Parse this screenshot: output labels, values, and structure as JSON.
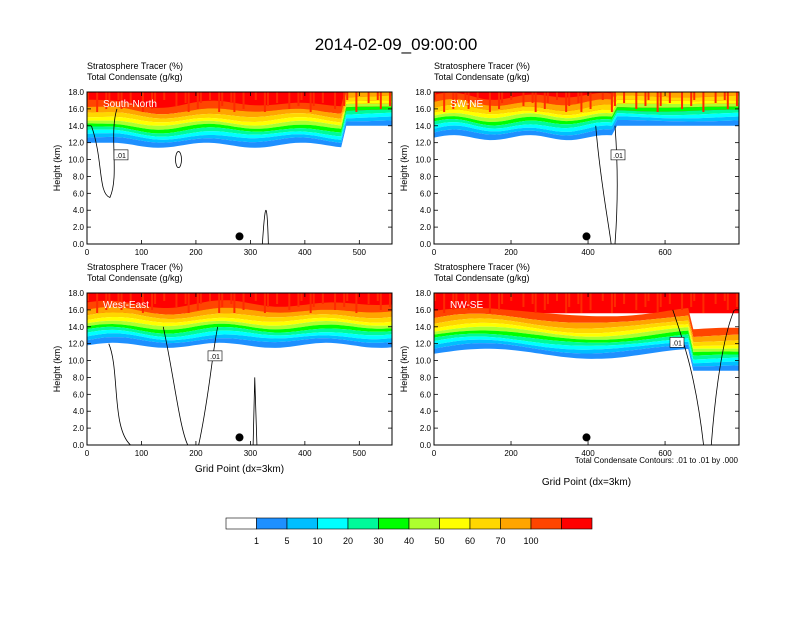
{
  "figure": {
    "title": "2014-02-09_09:00:00",
    "footnote": "Total Condensate Contours: .01 to .01 by .000"
  },
  "colorbar": {
    "colors": [
      "#ffffff",
      "#1e90ff",
      "#00bfff",
      "#00ffff",
      "#00fa9a",
      "#00ff00",
      "#adff2f",
      "#ffff00",
      "#ffd700",
      "#ffa500",
      "#ff4500",
      "#ff0000"
    ],
    "tick_labels": [
      "1",
      "5",
      "10",
      "20",
      "30",
      "40",
      "50",
      "60",
      "70",
      "100"
    ]
  },
  "chart_data": [
    {
      "type": "heatmap",
      "panel": "South-North",
      "title_line1": "Stratosphere Tracer   (%)",
      "title_line2": "Total Condensate   (g/kg)",
      "xlabel": "",
      "ylabel": "Height (km)",
      "xlim": [
        0,
        560
      ],
      "ylim": [
        0,
        18
      ],
      "xticks": [
        0,
        100,
        200,
        300,
        400,
        500
      ],
      "yticks": [
        "0.0",
        "2.0",
        "4.0",
        "6.0",
        "8.0",
        "10.0",
        "12.0",
        "14.0",
        "16.0",
        "18.0"
      ],
      "contour_label": ".01",
      "marker_x": 280
    },
    {
      "type": "heatmap",
      "panel": "SW-NE",
      "title_line1": "Stratosphere Tracer   (%)",
      "title_line2": "Total Condensate   (g/kg)",
      "xlabel": "",
      "ylabel": "Height (km)",
      "xlim": [
        0,
        792
      ],
      "ylim": [
        0,
        18
      ],
      "xticks": [
        0,
        200,
        400,
        600
      ],
      "yticks": [
        "0.0",
        "2.0",
        "4.0",
        "6.0",
        "8.0",
        "10.0",
        "12.0",
        "14.0",
        "16.0",
        "18.0"
      ],
      "contour_label": ".01",
      "marker_x": 396
    },
    {
      "type": "heatmap",
      "panel": "West-East",
      "title_line1": "Stratosphere Tracer   (%)",
      "title_line2": "Total Condensate   (g/kg)",
      "xlabel": "Grid Point (dx=3km)",
      "ylabel": "Height (km)",
      "xlim": [
        0,
        560
      ],
      "ylim": [
        0,
        18
      ],
      "xticks": [
        0,
        100,
        200,
        300,
        400,
        500
      ],
      "yticks": [
        "0.0",
        "2.0",
        "4.0",
        "6.0",
        "8.0",
        "10.0",
        "12.0",
        "14.0",
        "16.0",
        "18.0"
      ],
      "contour_label": ".01",
      "marker_x": 280
    },
    {
      "type": "heatmap",
      "panel": "NW-SE",
      "title_line1": "Stratosphere Tracer   (%)",
      "title_line2": "Total Condensate   (g/kg)",
      "xlabel": "Grid Point (dx=3km)",
      "ylabel": "Height (km)",
      "xlim": [
        0,
        792
      ],
      "ylim": [
        0,
        18
      ],
      "xticks": [
        0,
        200,
        400,
        600
      ],
      "yticks": [
        "0.0",
        "2.0",
        "4.0",
        "6.0",
        "8.0",
        "10.0",
        "12.0",
        "14.0",
        "16.0",
        "18.0"
      ],
      "contour_label": ".01",
      "marker_x": 396
    }
  ]
}
